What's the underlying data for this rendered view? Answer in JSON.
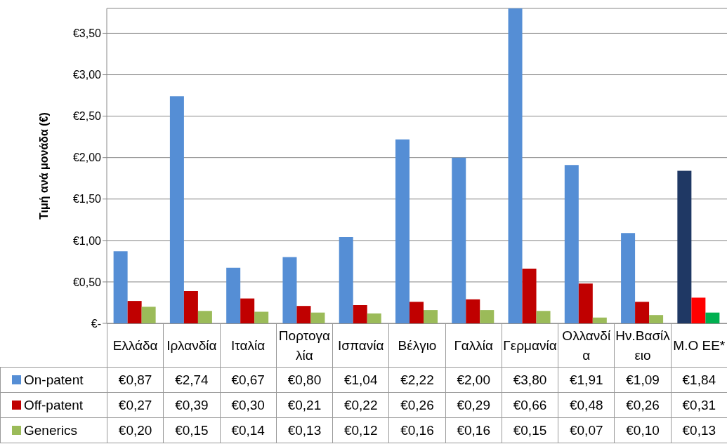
{
  "chart_data": {
    "type": "bar",
    "ylabel": "Τιμή ανά μονάδα (€)",
    "categories": [
      "Ελλάδα",
      "Ιρλανδία",
      "Ιταλία",
      "Πορτογαλία",
      "Ισπανία",
      "Βέλγιο",
      "Γαλλία",
      "Γερμανία",
      "Ολλανδία",
      "Ην.Βασίλειο",
      "Μ.Ο ΕΕ*"
    ],
    "series": [
      {
        "name": "On-patent",
        "color": "#558ed5",
        "colors": [
          "#558ed5",
          "#558ed5",
          "#558ed5",
          "#558ed5",
          "#558ed5",
          "#558ed5",
          "#558ed5",
          "#558ed5",
          "#558ed5",
          "#558ed5",
          "#1f3864"
        ],
        "values": [
          0.87,
          2.74,
          0.67,
          0.8,
          1.04,
          2.22,
          2.0,
          3.8,
          1.91,
          1.09,
          1.84
        ],
        "value_labels": [
          "€0,87",
          "€2,74",
          "€0,67",
          "€0,80",
          "€1,04",
          "€2,22",
          "€2,00",
          "€3,80",
          "€1,91",
          "€1,09",
          "€1,84"
        ]
      },
      {
        "name": "Off-patent",
        "color": "#c00000",
        "colors": [
          "#c00000",
          "#c00000",
          "#c00000",
          "#c00000",
          "#c00000",
          "#c00000",
          "#c00000",
          "#c00000",
          "#c00000",
          "#c00000",
          "#ff0000"
        ],
        "values": [
          0.27,
          0.39,
          0.3,
          0.21,
          0.22,
          0.26,
          0.29,
          0.66,
          0.48,
          0.26,
          0.31
        ],
        "value_labels": [
          "€0,27",
          "€0,39",
          "€0,30",
          "€0,21",
          "€0,22",
          "€0,26",
          "€0,29",
          "€0,66",
          "€0,48",
          "€0,26",
          "€0,31"
        ]
      },
      {
        "name": "Generics",
        "color": "#9bbb59",
        "colors": [
          "#9bbb59",
          "#9bbb59",
          "#9bbb59",
          "#9bbb59",
          "#9bbb59",
          "#9bbb59",
          "#9bbb59",
          "#9bbb59",
          "#9bbb59",
          "#9bbb59",
          "#00b050"
        ],
        "values": [
          0.2,
          0.15,
          0.14,
          0.13,
          0.12,
          0.16,
          0.16,
          0.15,
          0.07,
          0.1,
          0.13
        ],
        "value_labels": [
          "€0,20",
          "€0,15",
          "€0,14",
          "€0,13",
          "€0,12",
          "€0,16",
          "€0,16",
          "€0,15",
          "€0,07",
          "€0,10",
          "€0,13"
        ]
      }
    ],
    "ylim": [
      0,
      3.8
    ],
    "yticks": [
      {
        "value": 0,
        "label": "€-"
      },
      {
        "value": 0.5,
        "label": "€0,50"
      },
      {
        "value": 1,
        "label": "€1,00"
      },
      {
        "value": 1.5,
        "label": "€1,50"
      },
      {
        "value": 2,
        "label": "€2,00"
      },
      {
        "value": 2.5,
        "label": "€2,50"
      },
      {
        "value": 3,
        "label": "€3,00"
      },
      {
        "value": 3.5,
        "label": "€3,50"
      }
    ],
    "grid": "y",
    "data_labels": true,
    "legend": "bottom left"
  }
}
